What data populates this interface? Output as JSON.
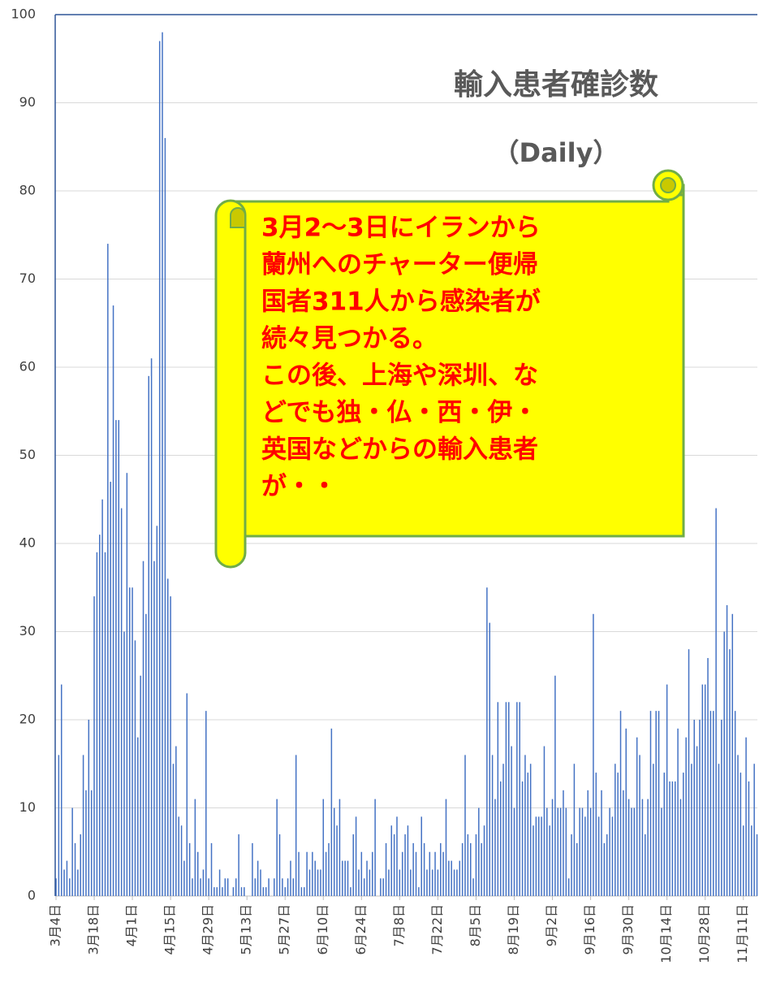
{
  "chart_data": {
    "type": "bar",
    "title": "輸入患者確診数",
    "subtitle": "（Daily）",
    "annotation": [
      "3月2〜3日にイランから",
      "蘭州へのチャーター便帰",
      "国者311人から感染者が",
      "続々見つかる。",
      "この後、上海や深圳、な",
      "どでも独・仏・西・伊・",
      "英国などからの輸入患者",
      "が・・"
    ],
    "color": "#4472c4",
    "grid": true,
    "ylim": [
      0,
      100
    ],
    "yticks": [
      0,
      10,
      20,
      30,
      40,
      50,
      60,
      70,
      80,
      90,
      100
    ],
    "categories": [
      "3月4日",
      null,
      null,
      null,
      null,
      null,
      null,
      null,
      null,
      null,
      null,
      null,
      null,
      null,
      "3月18日",
      null,
      null,
      null,
      null,
      null,
      null,
      null,
      null,
      null,
      null,
      null,
      null,
      null,
      "4月1日",
      null,
      null,
      null,
      null,
      null,
      null,
      null,
      null,
      null,
      null,
      null,
      null,
      null,
      "4月15日",
      null,
      null,
      null,
      null,
      null,
      null,
      null,
      null,
      null,
      null,
      null,
      null,
      null,
      "4月29日",
      null,
      null,
      null,
      null,
      null,
      null,
      null,
      null,
      null,
      null,
      null,
      null,
      null,
      "5月13日",
      null,
      null,
      null,
      null,
      null,
      null,
      null,
      null,
      null,
      null,
      null,
      null,
      null,
      "5月27日",
      null,
      null,
      null,
      null,
      null,
      null,
      null,
      null,
      null,
      null,
      null,
      null,
      null,
      "6月10日",
      null,
      null,
      null,
      null,
      null,
      null,
      null,
      null,
      null,
      null,
      null,
      null,
      null,
      "6月24日",
      null,
      null,
      null,
      null,
      null,
      null,
      null,
      null,
      null,
      null,
      null,
      null,
      null,
      "7月8日",
      null,
      null,
      null,
      null,
      null,
      null,
      null,
      null,
      null,
      null,
      null,
      null,
      null,
      "7月22日",
      null,
      null,
      null,
      null,
      null,
      null,
      null,
      null,
      null,
      null,
      null,
      null,
      null,
      "8月5日",
      null,
      null,
      null,
      null,
      null,
      null,
      null,
      null,
      null,
      null,
      null,
      null,
      null,
      "8月19日",
      null,
      null,
      null,
      null,
      null,
      null,
      null,
      null,
      null,
      null,
      null,
      null,
      null,
      "9月2日",
      null,
      null,
      null,
      null,
      null,
      null,
      null,
      null,
      null,
      null,
      null,
      null,
      null,
      "9月16日",
      null,
      null,
      null,
      null,
      null,
      null,
      null,
      null,
      null,
      null,
      null,
      null,
      null,
      "9月30日",
      null,
      null,
      null,
      null,
      null,
      null,
      null,
      null,
      null,
      null,
      null,
      null,
      null,
      "10月14日",
      null,
      null,
      null,
      null,
      null,
      null,
      null,
      null,
      null,
      null,
      null,
      null,
      null,
      "10月28日",
      null,
      null,
      null,
      null,
      null,
      null,
      null,
      null,
      null,
      null,
      null,
      null,
      null,
      "11月11日",
      null,
      null,
      null,
      null,
      null
    ],
    "values": [
      2,
      16,
      24,
      3,
      4,
      2,
      10,
      6,
      3,
      7,
      16,
      12,
      20,
      12,
      34,
      39,
      41,
      45,
      39,
      74,
      47,
      67,
      54,
      54,
      44,
      30,
      48,
      35,
      35,
      29,
      18,
      25,
      38,
      32,
      59,
      61,
      38,
      42,
      97,
      98,
      86,
      36,
      34,
      15,
      17,
      9,
      8,
      4,
      23,
      6,
      2,
      11,
      5,
      2,
      3,
      21,
      2,
      6,
      1,
      1,
      3,
      1,
      2,
      2,
      0,
      1,
      2,
      7,
      1,
      1,
      0,
      0,
      6,
      2,
      4,
      3,
      1,
      1,
      2,
      0,
      2,
      11,
      7,
      2,
      1,
      2,
      4,
      2,
      16,
      5,
      1,
      1,
      5,
      3,
      5,
      4,
      3,
      3,
      11,
      5,
      6,
      19,
      10,
      8,
      11,
      4,
      4,
      4,
      1,
      7,
      9,
      3,
      5,
      2,
      4,
      3,
      5,
      11,
      0,
      2,
      2,
      6,
      3,
      8,
      7,
      9,
      3,
      5,
      7,
      8,
      3,
      6,
      5,
      1,
      9,
      6,
      3,
      5,
      3,
      5,
      3,
      6,
      5,
      11,
      4,
      4,
      3,
      3,
      4,
      6,
      16,
      7,
      6,
      2,
      7,
      10,
      6,
      8,
      35,
      31,
      16,
      11,
      22,
      13,
      15,
      22,
      22,
      17,
      10,
      22,
      22,
      13,
      16,
      14,
      15,
      8,
      9,
      9,
      9,
      17,
      10,
      8,
      11,
      25,
      10,
      10,
      12,
      10,
      2,
      7,
      15,
      6,
      10,
      10,
      9,
      12,
      10,
      32,
      14,
      9,
      12,
      6,
      7,
      10,
      9,
      15,
      14,
      21,
      12,
      19,
      11,
      10,
      10,
      18,
      16,
      11,
      7,
      11,
      21,
      15,
      21,
      21,
      10,
      14,
      24,
      13,
      13,
      13,
      19,
      11,
      14,
      18,
      28,
      15,
      20,
      17,
      20,
      24,
      24,
      27,
      21,
      21,
      44,
      15,
      20,
      30,
      33,
      28,
      32,
      21,
      16,
      14,
      8,
      18,
      13,
      8,
      15,
      7
    ]
  }
}
